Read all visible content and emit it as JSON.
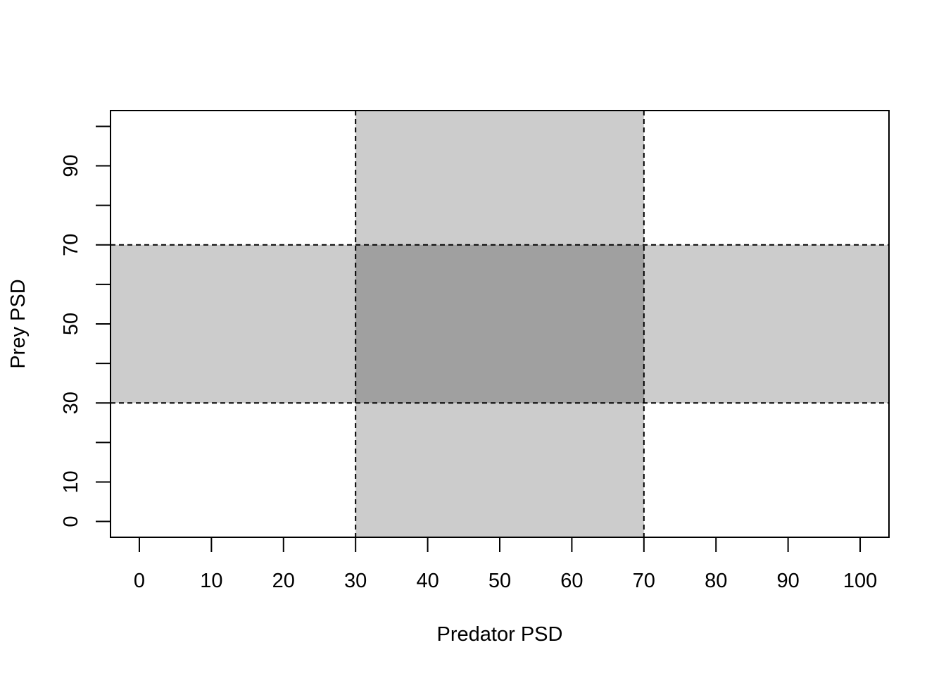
{
  "chart_data": {
    "type": "area",
    "title": "",
    "xlabel": "Predator PSD",
    "ylabel": "Prey PSD",
    "xlim": [
      -4,
      104
    ],
    "ylim": [
      -4,
      104
    ],
    "x_ticks": [
      0,
      10,
      20,
      30,
      40,
      50,
      60,
      70,
      80,
      90,
      100
    ],
    "x_tick_labels": [
      "0",
      "10",
      "20",
      "30",
      "40",
      "50",
      "60",
      "70",
      "80",
      "90",
      "100"
    ],
    "y_ticks": [
      0,
      10,
      20,
      30,
      40,
      50,
      60,
      70,
      80,
      90,
      100
    ],
    "y_tick_labels": [
      "0",
      "10",
      "",
      "30",
      "",
      "50",
      "",
      "70",
      "",
      "90",
      ""
    ],
    "grid": false,
    "regions": [
      {
        "axis": "x",
        "from": 30,
        "to": 70,
        "color": "#cccccc"
      },
      {
        "axis": "y",
        "from": 30,
        "to": 70,
        "color": "#cccccc"
      },
      {
        "axis": "both",
        "x_from": 30,
        "x_to": 70,
        "y_from": 30,
        "y_to": 70,
        "color": "#a0a0a0"
      }
    ],
    "reference_lines": [
      {
        "orientation": "vertical",
        "value": 30,
        "style": "dashed"
      },
      {
        "orientation": "vertical",
        "value": 70,
        "style": "dashed"
      },
      {
        "orientation": "horizontal",
        "value": 30,
        "style": "dashed"
      },
      {
        "orientation": "horizontal",
        "value": 70,
        "style": "dashed"
      }
    ]
  }
}
